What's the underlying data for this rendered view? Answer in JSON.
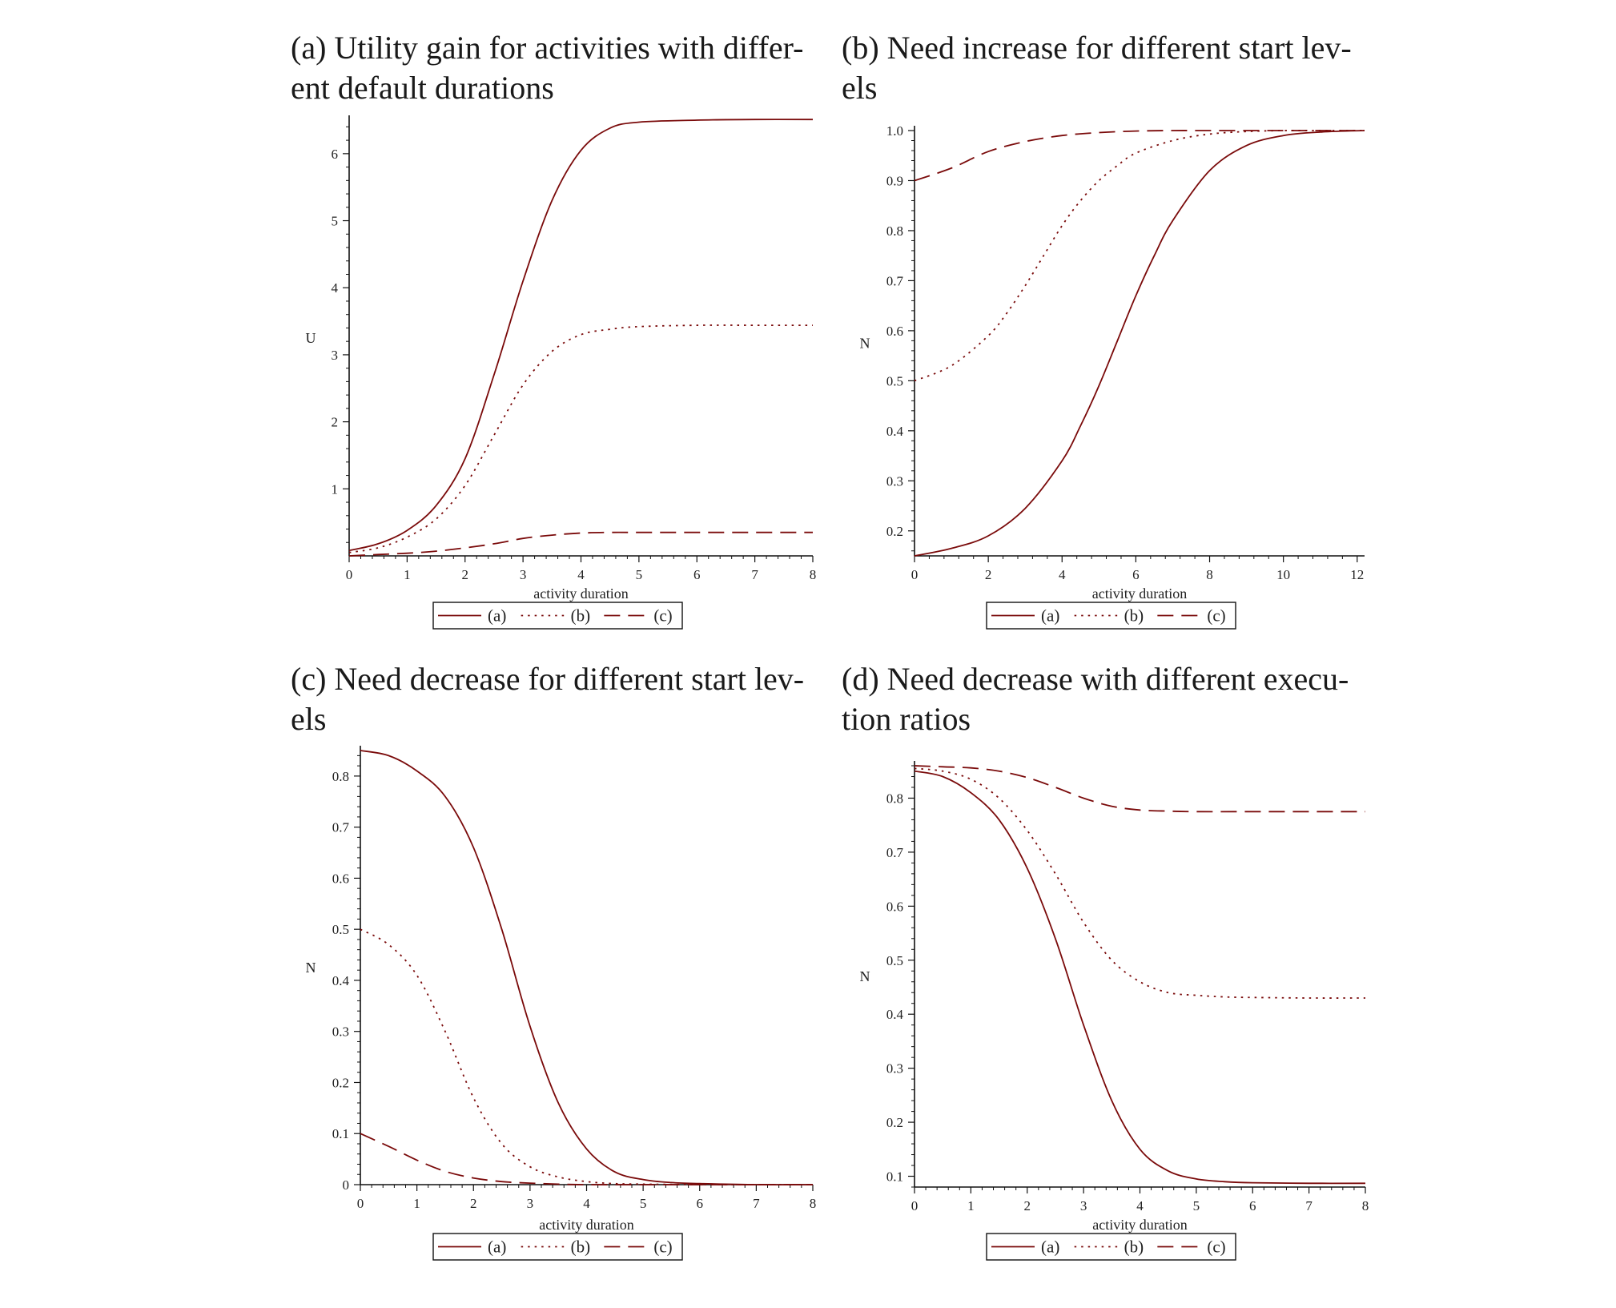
{
  "chart_data": [
    {
      "type": "line",
      "title_prefix": "(a)",
      "title_lines": [
        "Utility gain for activities with differ-",
        "ent default durations"
      ],
      "xlabel": "activity duration",
      "ylabel": "U",
      "xlim": [
        0,
        8
      ],
      "ylim": [
        0,
        6.5
      ],
      "xticks": [
        0,
        1,
        2,
        3,
        4,
        5,
        6,
        7,
        8
      ],
      "yticks": [
        1,
        2,
        3,
        4,
        5,
        6
      ],
      "ytick_labels": [
        "1",
        "2",
        "3",
        "4",
        "5",
        "6"
      ],
      "legend": [
        "(a)",
        "(b)",
        "(c)"
      ],
      "series": [
        {
          "name": "(a)",
          "style": "solid",
          "x": [
            0,
            0.5,
            1,
            1.5,
            2,
            2.5,
            3,
            3.5,
            4,
            4.5,
            5,
            6,
            7,
            8
          ],
          "y": [
            0.08,
            0.18,
            0.38,
            0.75,
            1.45,
            2.7,
            4.1,
            5.3,
            6.05,
            6.38,
            6.47,
            6.5,
            6.51,
            6.51
          ]
        },
        {
          "name": "(b)",
          "style": "dotted",
          "x": [
            0,
            0.5,
            1,
            1.5,
            2,
            2.5,
            3,
            3.5,
            4,
            4.5,
            5,
            6,
            7,
            8
          ],
          "y": [
            0.05,
            0.12,
            0.28,
            0.55,
            1.05,
            1.8,
            2.55,
            3.05,
            3.3,
            3.38,
            3.42,
            3.44,
            3.44,
            3.44
          ]
        },
        {
          "name": "(c)",
          "style": "dashed",
          "x": [
            0,
            0.5,
            1,
            1.5,
            2,
            2.5,
            3,
            3.5,
            4,
            4.5,
            5,
            6,
            7,
            8
          ],
          "y": [
            0.0,
            0.02,
            0.04,
            0.07,
            0.12,
            0.18,
            0.26,
            0.31,
            0.34,
            0.35,
            0.35,
            0.35,
            0.35,
            0.35
          ]
        }
      ]
    },
    {
      "type": "line",
      "title_prefix": "(b)",
      "title_lines": [
        "Need increase for different start lev-",
        "els"
      ],
      "xlabel": "activity duration",
      "ylabel": "N",
      "xlim": [
        0,
        12.2
      ],
      "ylim": [
        0.15,
        1.0
      ],
      "xticks": [
        0,
        2,
        4,
        6,
        8,
        10,
        12
      ],
      "yticks": [
        0.2,
        0.3,
        0.4,
        0.5,
        0.6,
        0.7,
        0.8,
        0.9,
        1.0
      ],
      "ytick_labels": [
        "0.2",
        "0.3",
        "0.4",
        "0.5",
        "0.6",
        "0.7",
        "0.8",
        "0.9",
        "1.0"
      ],
      "legend": [
        "(a)",
        "(b)",
        "(c)"
      ],
      "series": [
        {
          "name": "(a)",
          "style": "solid",
          "x": [
            0,
            1,
            2,
            3,
            4,
            4.5,
            5,
            5.5,
            6,
            6.5,
            7,
            8,
            9,
            10,
            11,
            12.2
          ],
          "y": [
            0.15,
            0.165,
            0.19,
            0.245,
            0.34,
            0.41,
            0.49,
            0.58,
            0.67,
            0.75,
            0.82,
            0.92,
            0.97,
            0.99,
            0.997,
            1.0
          ]
        },
        {
          "name": "(b)",
          "style": "dotted",
          "x": [
            0,
            1,
            2,
            2.5,
            3,
            3.5,
            4,
            4.5,
            5,
            5.5,
            6,
            7,
            8,
            9,
            10,
            11,
            12.2
          ],
          "y": [
            0.5,
            0.53,
            0.59,
            0.635,
            0.69,
            0.75,
            0.81,
            0.86,
            0.9,
            0.93,
            0.955,
            0.98,
            0.993,
            0.998,
            1.0,
            1.0,
            1.0
          ]
        },
        {
          "name": "(c)",
          "style": "dashed",
          "x": [
            0,
            1,
            2,
            3,
            4,
            5,
            6,
            7,
            8,
            10,
            12.2
          ],
          "y": [
            0.9,
            0.925,
            0.958,
            0.978,
            0.99,
            0.996,
            0.999,
            1.0,
            1.0,
            1.0,
            1.0
          ]
        }
      ]
    },
    {
      "type": "line",
      "title_prefix": "(c)",
      "title_lines": [
        "Need decrease for different start lev-",
        "els"
      ],
      "xlabel": "activity duration",
      "ylabel": "N",
      "xlim": [
        0,
        8
      ],
      "ylim": [
        0,
        0.85
      ],
      "xticks": [
        0,
        1,
        2,
        3,
        4,
        5,
        6,
        7,
        8
      ],
      "yticks": [
        0,
        0.1,
        0.2,
        0.3,
        0.4,
        0.5,
        0.6,
        0.7,
        0.8
      ],
      "ytick_labels": [
        "0",
        "0.1",
        "0.2",
        "0.3",
        "0.4",
        "0.5",
        "0.6",
        "0.7",
        "0.8"
      ],
      "legend": [
        "(a)",
        "(b)",
        "(c)"
      ],
      "series": [
        {
          "name": "(a)",
          "style": "solid",
          "x": [
            0,
            0.5,
            1,
            1.5,
            2,
            2.5,
            3,
            3.5,
            4,
            4.5,
            5,
            5.5,
            6,
            7,
            8
          ],
          "y": [
            0.85,
            0.84,
            0.81,
            0.76,
            0.66,
            0.5,
            0.31,
            0.16,
            0.07,
            0.025,
            0.01,
            0.004,
            0.002,
            0.0,
            0.0
          ]
        },
        {
          "name": "(b)",
          "style": "dotted",
          "x": [
            0,
            0.5,
            1,
            1.5,
            2,
            2.5,
            3,
            3.5,
            4,
            4.5,
            5,
            6,
            7,
            8
          ],
          "y": [
            0.5,
            0.47,
            0.41,
            0.3,
            0.17,
            0.08,
            0.035,
            0.015,
            0.006,
            0.002,
            0.001,
            0.0,
            0.0,
            0.0
          ]
        },
        {
          "name": "(c)",
          "style": "dashed",
          "x": [
            0,
            0.5,
            1,
            1.5,
            2,
            2.5,
            3,
            3.5,
            4,
            5,
            6,
            7,
            8
          ],
          "y": [
            0.1,
            0.075,
            0.048,
            0.026,
            0.013,
            0.006,
            0.003,
            0.001,
            0.0,
            0.0,
            0.0,
            0.0,
            0.0
          ]
        }
      ]
    },
    {
      "type": "line",
      "title_prefix": "(d)",
      "title_lines": [
        "Need decrease with different execu-",
        "tion ratios"
      ],
      "xlabel": "activity duration",
      "ylabel": "N",
      "xlim": [
        0,
        8
      ],
      "ylim": [
        0.08,
        0.86
      ],
      "xticks": [
        0,
        1,
        2,
        3,
        4,
        5,
        6,
        7,
        8
      ],
      "yticks": [
        0.1,
        0.2,
        0.3,
        0.4,
        0.5,
        0.6,
        0.7,
        0.8
      ],
      "ytick_labels": [
        "0.1",
        "0.2",
        "0.3",
        "0.4",
        "0.5",
        "0.6",
        "0.7",
        "0.8"
      ],
      "legend": [
        "(a)",
        "(b)",
        "(c)"
      ],
      "series": [
        {
          "name": "(a)",
          "style": "solid",
          "x": [
            0,
            0.5,
            1,
            1.5,
            2,
            2.5,
            3,
            3.5,
            4,
            4.5,
            5,
            5.5,
            6,
            7,
            8
          ],
          "y": [
            0.85,
            0.84,
            0.81,
            0.76,
            0.67,
            0.54,
            0.38,
            0.24,
            0.15,
            0.11,
            0.095,
            0.09,
            0.088,
            0.087,
            0.087
          ]
        },
        {
          "name": "(b)",
          "style": "dotted",
          "x": [
            0,
            0.5,
            1,
            1.5,
            2,
            2.5,
            3,
            3.5,
            4,
            4.5,
            5,
            5.5,
            6,
            7,
            8
          ],
          "y": [
            0.855,
            0.85,
            0.835,
            0.8,
            0.74,
            0.66,
            0.57,
            0.5,
            0.46,
            0.44,
            0.435,
            0.432,
            0.431,
            0.43,
            0.43
          ]
        },
        {
          "name": "(c)",
          "style": "dashed",
          "x": [
            0,
            0.5,
            1,
            1.5,
            2,
            2.5,
            3,
            3.5,
            4,
            4.5,
            5,
            6,
            7,
            8
          ],
          "y": [
            0.86,
            0.858,
            0.856,
            0.85,
            0.838,
            0.82,
            0.8,
            0.785,
            0.778,
            0.776,
            0.775,
            0.775,
            0.775,
            0.775
          ]
        }
      ]
    }
  ],
  "colors": {
    "line": "#7a0a0a",
    "axis": "#111111"
  }
}
